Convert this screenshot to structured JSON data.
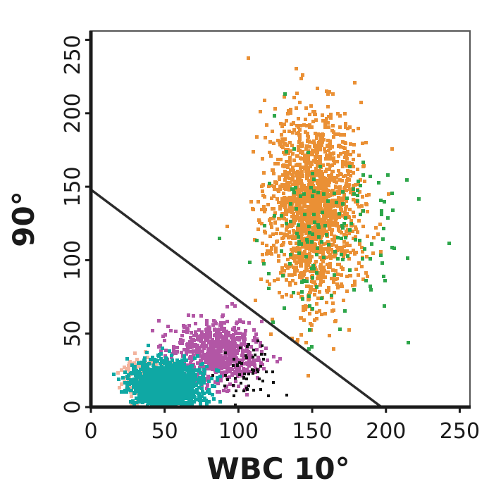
{
  "chart_data": {
    "type": "scatter",
    "xlabel": "WBC 10°",
    "ylabel": "90°",
    "xlim": [
      0,
      256
    ],
    "ylim": [
      0,
      256
    ],
    "x_ticks": [
      "0",
      "50",
      "100",
      "150",
      "200",
      "250"
    ],
    "y_ticks": [
      "0",
      "50",
      "100",
      "150",
      "200",
      "250"
    ],
    "x_tick_values": [
      0,
      50,
      100,
      150,
      200,
      250
    ],
    "y_tick_values": [
      0,
      50,
      100,
      150,
      200,
      250
    ],
    "grid": false,
    "legend": "none",
    "divider_line": {
      "from": [
        0,
        148
      ],
      "to": [
        197,
        0
      ],
      "color": "#2b2b2b"
    },
    "series": [
      {
        "color": "#ea9035",
        "center": [
          150,
          135
        ],
        "spread": [
          15,
          32
        ],
        "count": 1700,
        "marker_size": 5
      },
      {
        "color": "#2da64a",
        "center": [
          160,
          118
        ],
        "spread": [
          25,
          30
        ],
        "count": 160,
        "marker_size": 5
      },
      {
        "color": "#b256a5",
        "center": [
          85,
          35
        ],
        "spread": [
          15,
          11
        ],
        "count": 650,
        "marker_size": 5
      },
      {
        "color": "#f3b49e",
        "center": [
          33,
          18
        ],
        "spread": [
          7,
          8
        ],
        "count": 140,
        "marker_size": 5
      },
      {
        "color": "#0fa8a4",
        "center": [
          50,
          14
        ],
        "spread": [
          12,
          8
        ],
        "count": 1500,
        "marker_size": 5
      },
      {
        "color": "#111111",
        "center": [
          105,
          22
        ],
        "spread": [
          11,
          9
        ],
        "count": 55,
        "marker_size": 4
      }
    ]
  }
}
